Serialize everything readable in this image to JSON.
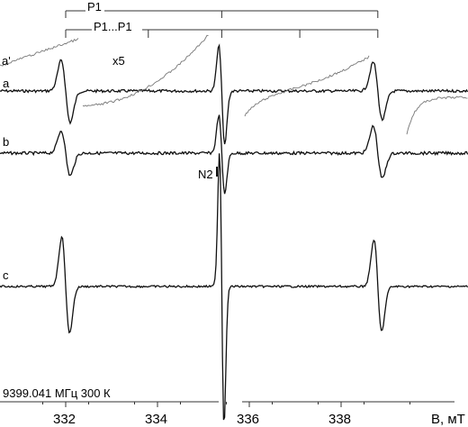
{
  "chart_data": {
    "type": "line",
    "xlabel": "B, мТ",
    "x_ticks": [
      332,
      334,
      336,
      338
    ],
    "xlim": [
      331.0,
      340.5
    ],
    "frequency_note": "9399.041 МГц 300 К",
    "series": [
      {
        "name": "a'",
        "scale_label": "x5",
        "baseline": 68
      },
      {
        "name": "a",
        "baseline": 101
      },
      {
        "name": "b",
        "baseline": 170
      },
      {
        "name": "c",
        "baseline": 318
      }
    ],
    "peaks": {
      "a": [
        {
          "x": 332.0,
          "label_y_top": -34,
          "label_y_bot": 35
        },
        {
          "x": 335.4,
          "label_y_top": -50,
          "label_y_bot": 60
        },
        {
          "x": 338.8,
          "label_y_top": -32,
          "label_y_bot": 32
        }
      ],
      "b": [
        {
          "x": 332.0,
          "label_y_top": -25,
          "label_y_bot": 25
        },
        {
          "x": 335.4,
          "label_y_top": -42,
          "label_y_bot": 45
        },
        {
          "x": 338.8,
          "label_y_top": -30,
          "label_y_bot": 28
        }
      ],
      "c": [
        {
          "x": 332.0,
          "label_y_top": -55,
          "label_y_bot": 52
        },
        {
          "x": 335.4,
          "label_y_top": -150,
          "label_y_bot": 155
        },
        {
          "x": 338.8,
          "label_y_top": -52,
          "label_y_bot": 50
        }
      ]
    },
    "annotations": {
      "stick_top": {
        "text": "P1",
        "positions": [
          332.0,
          335.4,
          338.8
        ]
      },
      "stick_bottom": {
        "text": "P1...P1",
        "positions": [
          332.0,
          333.8,
          335.4,
          337.1,
          338.8
        ]
      },
      "peak_label": "N2"
    }
  }
}
